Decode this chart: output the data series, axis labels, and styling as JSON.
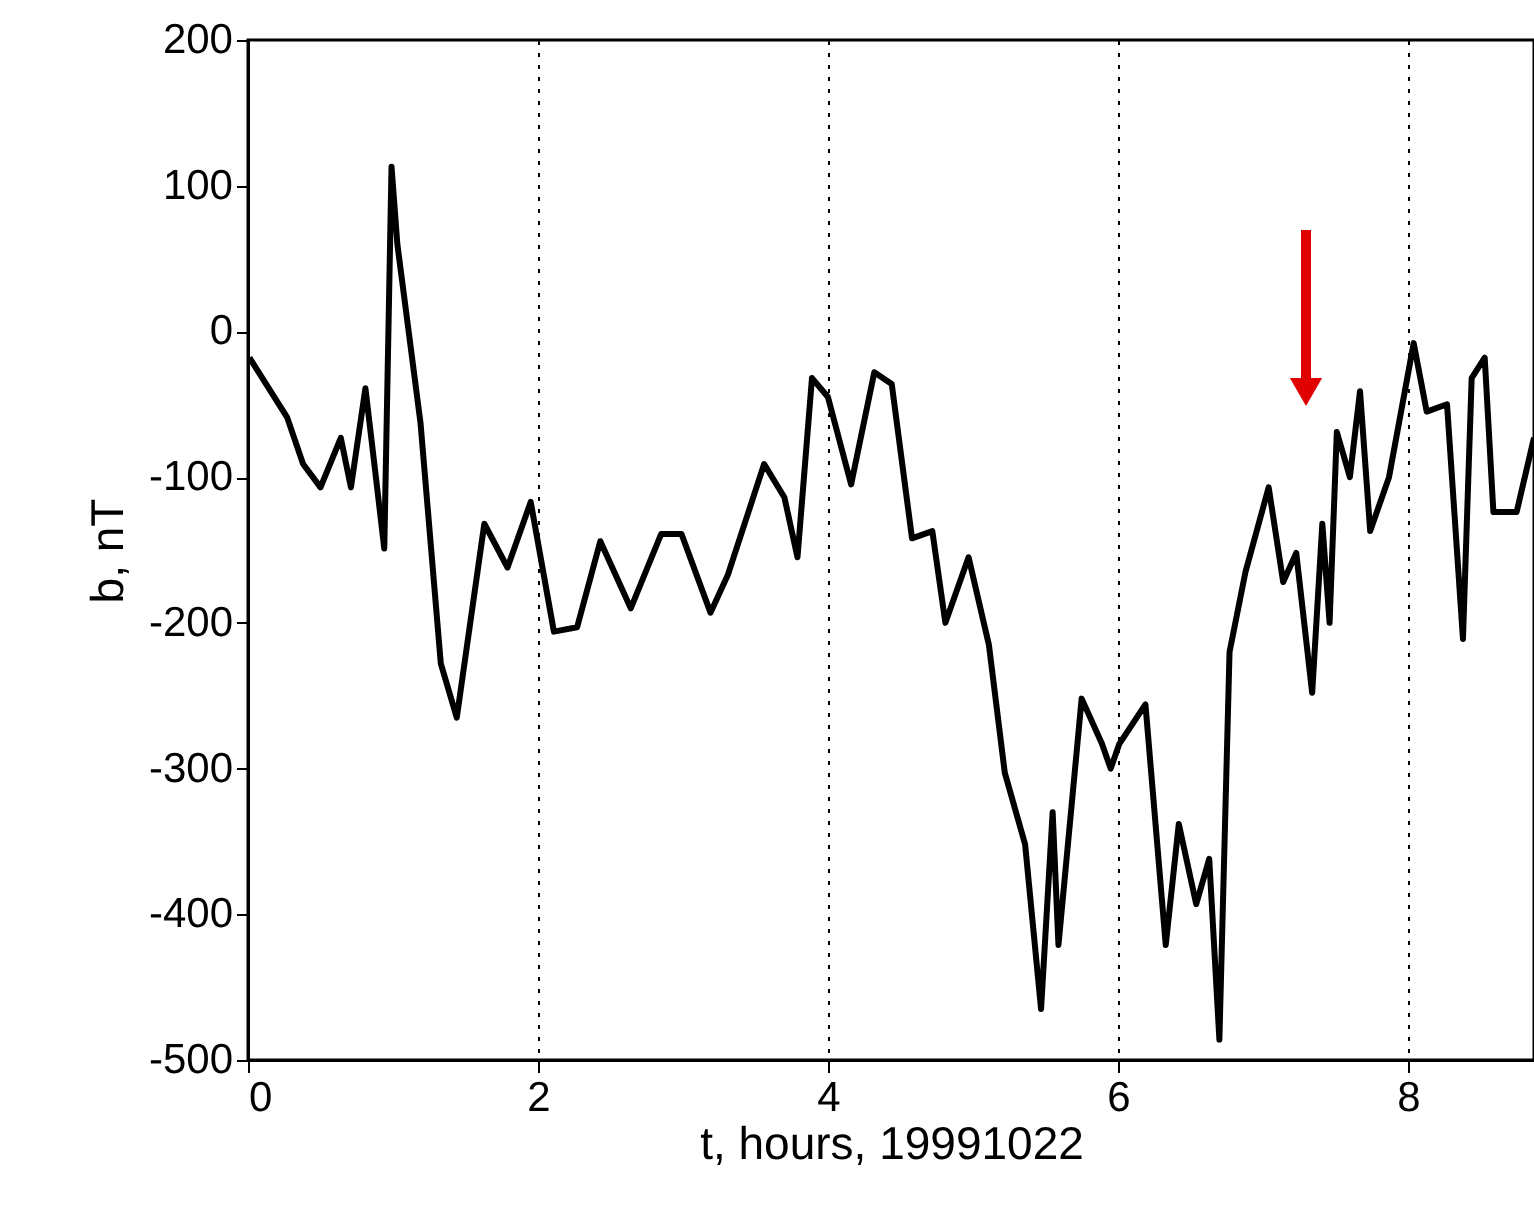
{
  "chart_data": {
    "type": "line",
    "xlabel": "t, hours, 19991022",
    "ylabel": "b, nT",
    "xlim": [
      0,
      8.87
    ],
    "xticks": [
      0,
      2,
      4,
      6,
      8
    ],
    "ylim": [
      -500,
      200
    ],
    "yticks": [
      -500,
      -400,
      -300,
      -200,
      -100,
      0,
      100,
      200
    ],
    "grid": "x",
    "line_style": "solid",
    "marker": "none",
    "series": [
      {
        "color": "#000000",
        "x": [
          0.01,
          0.27,
          0.38,
          0.5,
          0.64,
          0.71,
          0.81,
          0.94,
          0.99,
          1.03,
          1.19,
          1.33,
          1.44,
          1.63,
          1.79,
          1.95,
          2.11,
          2.27,
          2.43,
          2.64,
          2.85,
          2.99,
          3.19,
          3.31,
          3.56,
          3.7,
          3.79,
          3.89,
          4.0,
          4.16,
          4.32,
          4.44,
          4.58,
          4.72,
          4.81,
          4.97,
          5.11,
          5.22,
          5.36,
          5.47,
          5.55,
          5.59,
          5.75,
          5.89,
          5.95,
          6.01,
          6.19,
          6.33,
          6.42,
          6.54,
          6.63,
          6.7,
          6.77,
          6.88,
          7.04,
          7.14,
          7.23,
          7.34,
          7.41,
          7.46,
          7.51,
          7.6,
          7.67,
          7.74,
          7.87,
          8.04,
          8.13,
          8.27,
          8.38,
          8.44,
          8.53,
          8.59,
          8.75,
          8.87
        ],
        "values": [
          -18,
          -59,
          -91,
          -107,
          -73,
          -107,
          -39,
          -149,
          113,
          60,
          -63,
          -228,
          -265,
          -132,
          -162,
          -117,
          -206,
          -203,
          -144,
          -190,
          -139,
          -139,
          -193,
          -167,
          -91,
          -114,
          -155,
          -32,
          -45,
          -105,
          -28,
          -36,
          -142,
          -137,
          -200,
          -155,
          -215,
          -303,
          -352,
          -465,
          -330,
          -421,
          -252,
          -283,
          -300,
          -283,
          -256,
          -421,
          -338,
          -393,
          -362,
          -486,
          -220,
          -165,
          -107,
          -172,
          -152,
          -248,
          -132,
          -200,
          -69,
          -100,
          -41,
          -137,
          -100,
          -8,
          -55,
          -50,
          -211,
          -32,
          -18,
          -124,
          -124,
          -73
        ]
      }
    ]
  }
}
